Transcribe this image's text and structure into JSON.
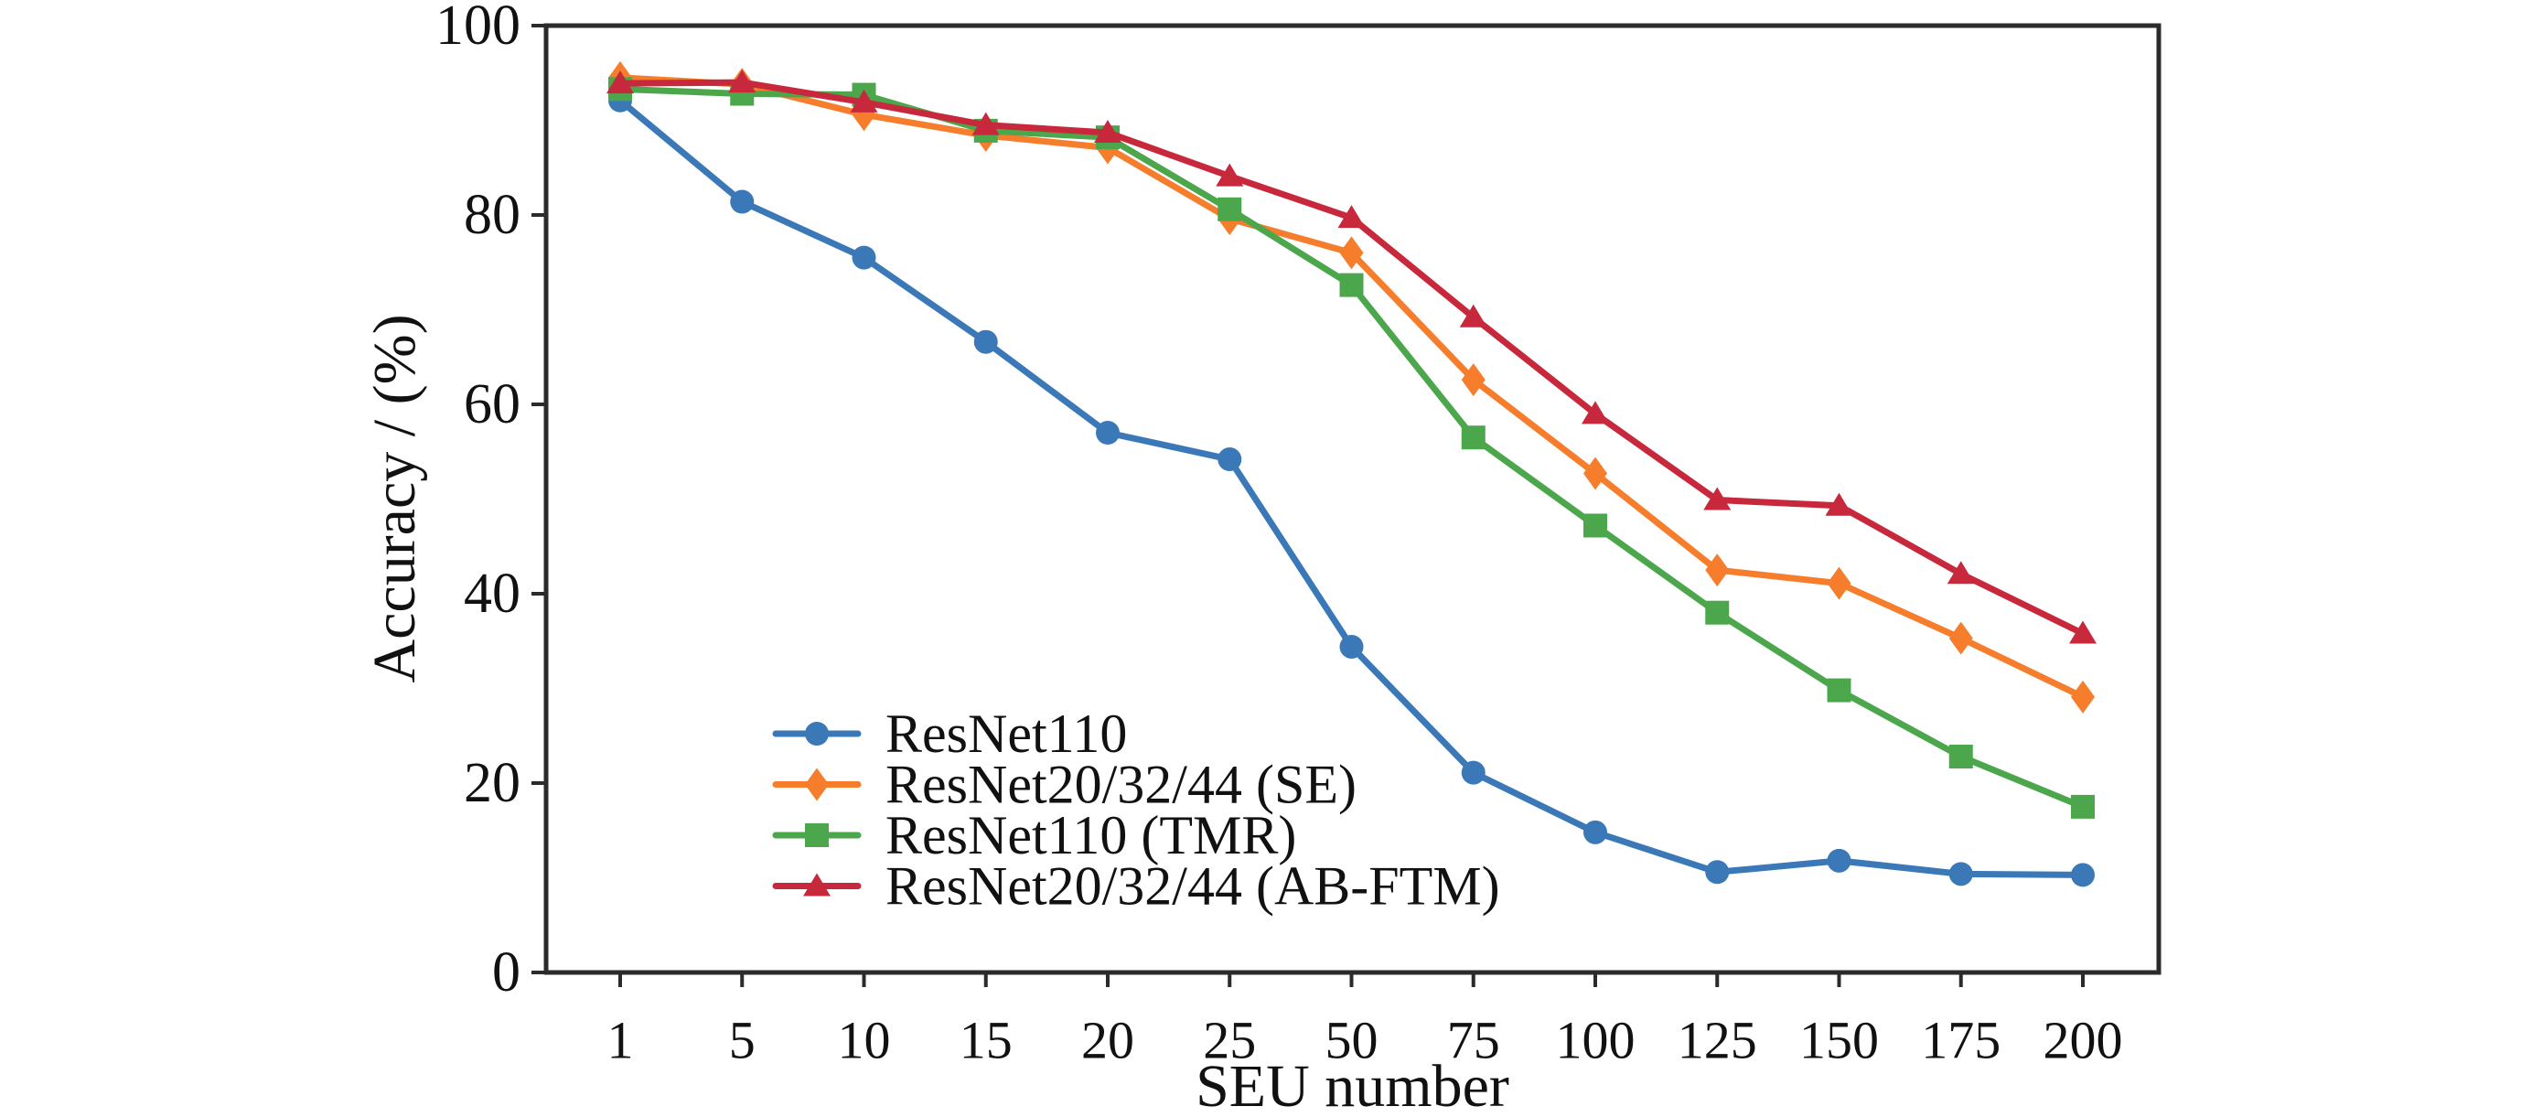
{
  "figure": {
    "background": "#ffffff",
    "axis_color": "#2b2b2b",
    "text_color": "#111111"
  },
  "chart_data": {
    "type": "line",
    "title": "",
    "xlabel": "SEU number",
    "ylabel": "Accuracy / (%)",
    "categories": [
      1,
      5,
      10,
      15,
      20,
      25,
      50,
      75,
      100,
      125,
      150,
      175,
      200
    ],
    "ylim": [
      0,
      100
    ],
    "yticks": [
      0,
      20,
      40,
      60,
      80,
      100
    ],
    "grid": false,
    "legend_position": "inside lower-left",
    "series": [
      {
        "name": "ResNet110",
        "color": "#3b78b7",
        "marker": "circle",
        "values": [
          92.1,
          81.4,
          75.5,
          66.6,
          57.0,
          54.2,
          34.4,
          21.1,
          14.8,
          10.6,
          11.8,
          10.4,
          10.3
        ]
      },
      {
        "name": "ResNet20/32/44 (SE)",
        "color": "#f57d2b",
        "marker": "diamond",
        "values": [
          94.5,
          93.8,
          90.6,
          88.4,
          87.1,
          79.6,
          76.0,
          62.6,
          52.7,
          42.5,
          41.1,
          35.3,
          29.1
        ]
      },
      {
        "name": "ResNet110 (TMR)",
        "color": "#4ca64c",
        "marker": "square",
        "values": [
          93.3,
          92.8,
          92.7,
          88.9,
          88.2,
          80.6,
          72.6,
          56.5,
          47.2,
          38.0,
          29.8,
          22.8,
          17.5
        ]
      },
      {
        "name": "ResNet20/32/44 (AB-FTM)",
        "color": "#c7283c",
        "marker": "triangle",
        "values": [
          93.9,
          94.0,
          91.9,
          89.5,
          88.7,
          84.1,
          79.7,
          69.2,
          59.0,
          49.9,
          49.3,
          42.1,
          35.8
        ]
      }
    ]
  }
}
